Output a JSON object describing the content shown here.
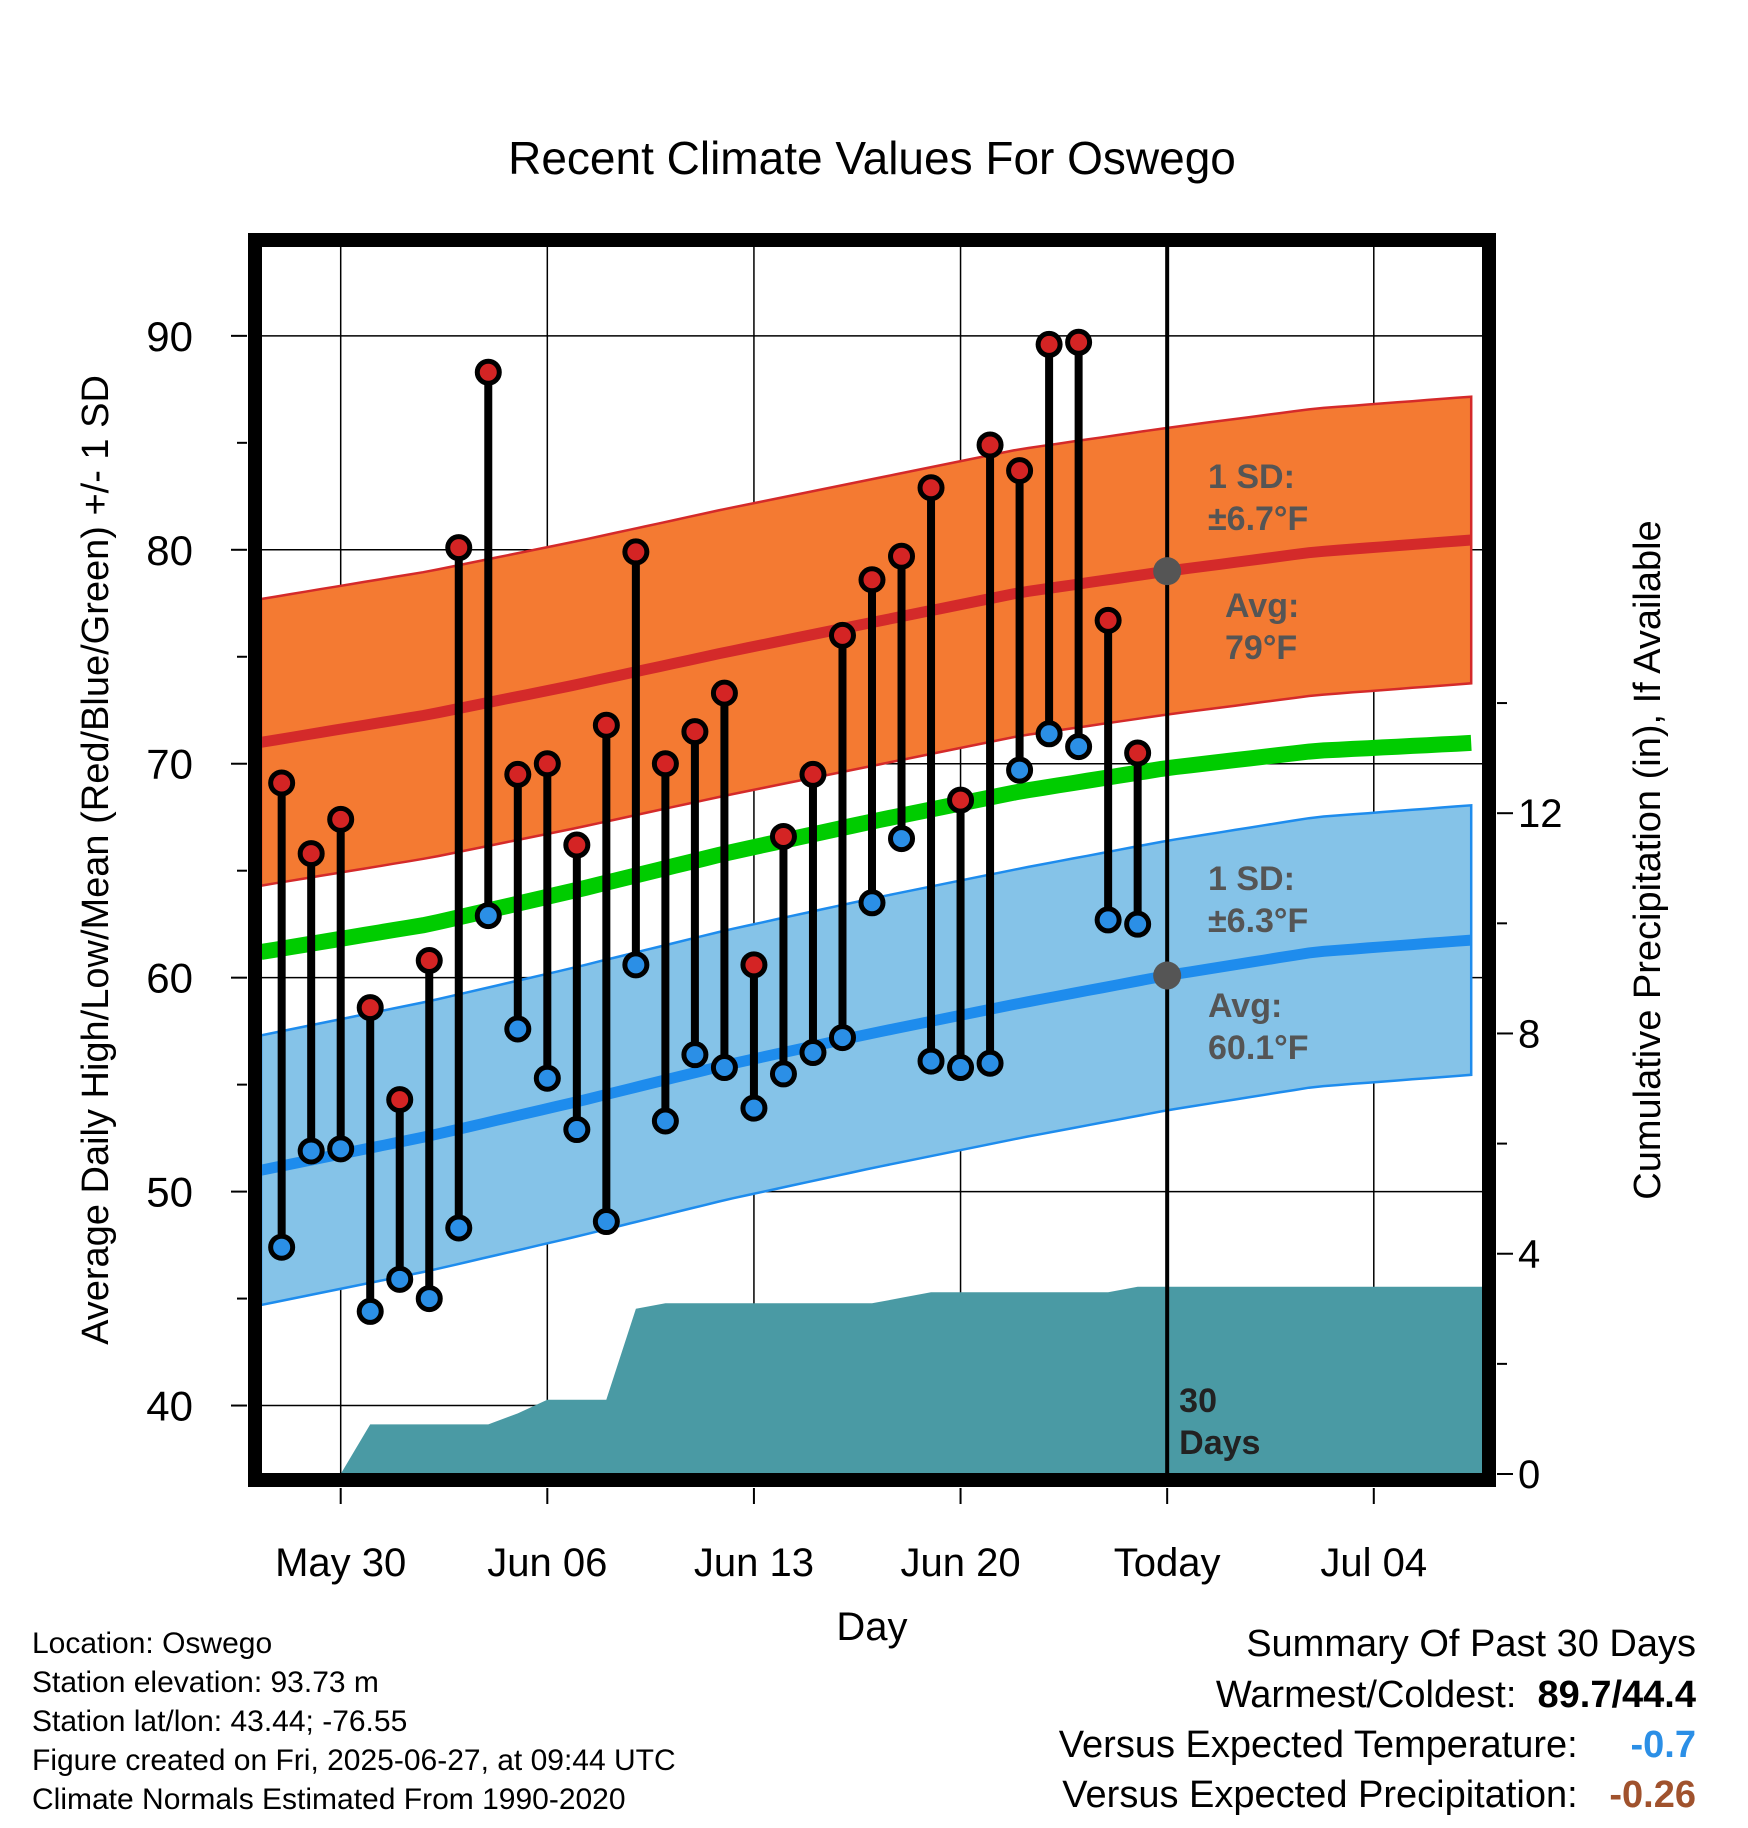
{
  "chart_data": {
    "type": "line",
    "title": "Recent Climate Values For Oswego",
    "xlabel": "Day",
    "ylabel": "Average Daily High/Low/Mean (Red/Blue/Green) +/- 1 SD",
    "y2label": "Cumulative Precipitation (in), If Available",
    "ylim": [
      36.8,
      94.2
    ],
    "y2lim": [
      0,
      22.3
    ],
    "y_ticks": [
      40,
      50,
      60,
      70,
      80,
      90
    ],
    "y2_ticks": [
      0,
      4,
      8,
      12
    ],
    "x_range_day_index": [
      -0.7,
      40.7
    ],
    "x_ticks": [
      {
        "day": 2,
        "label": "May 30"
      },
      {
        "day": 9,
        "label": "Jun 06"
      },
      {
        "day": 16,
        "label": "Jun 13"
      },
      {
        "day": 23,
        "label": "Jun 20"
      },
      {
        "day": 30,
        "label": "Today"
      },
      {
        "day": 37,
        "label": "Jul 04"
      }
    ],
    "grid": true,
    "today_line": {
      "day": 30,
      "label_line1": "30",
      "label_line2": "Days"
    },
    "normals": {
      "days": [
        -0.7,
        5,
        10,
        15,
        20,
        25,
        30,
        35,
        40.7
      ],
      "avg_high": [
        71.0,
        72.3,
        73.7,
        75.2,
        76.6,
        78.0,
        79.0,
        79.9,
        80.5
      ],
      "avg_low": [
        51.0,
        52.6,
        54.2,
        55.9,
        57.4,
        58.8,
        60.1,
        61.2,
        61.8
      ],
      "avg_mean": [
        61.2,
        62.5,
        64.1,
        65.8,
        67.3,
        68.7,
        69.8,
        70.6,
        71.0
      ],
      "high_sd": 6.7,
      "low_sd": 6.3
    },
    "annotations": {
      "high_sd_label_1": "1 SD:",
      "high_sd_label_2": "±6.7°F",
      "high_avg_label_1": "Avg:",
      "high_avg_label_2": "79°F",
      "low_sd_label_1": "1 SD:",
      "low_sd_label_2": "±6.3°F",
      "low_avg_label_1": "Avg:",
      "low_avg_label_2": "60.1°F"
    },
    "daily": {
      "days": [
        0,
        1,
        2,
        3,
        4,
        5,
        6,
        7,
        8,
        9,
        10,
        11,
        12,
        13,
        14,
        15,
        16,
        17,
        18,
        19,
        20,
        21,
        22,
        23,
        24,
        25,
        26,
        27,
        28,
        29
      ],
      "high": [
        69.1,
        65.8,
        67.4,
        58.6,
        54.3,
        60.8,
        80.1,
        88.3,
        69.5,
        70.0,
        66.2,
        71.8,
        79.9,
        70.0,
        71.5,
        73.3,
        60.6,
        66.6,
        69.5,
        76.0,
        78.6,
        79.7,
        82.9,
        68.3,
        84.9,
        83.7,
        89.6,
        89.7,
        76.7,
        70.5
      ],
      "low": [
        47.4,
        51.9,
        52.0,
        44.4,
        45.9,
        45.0,
        48.3,
        62.9,
        57.6,
        55.3,
        52.9,
        48.6,
        60.6,
        53.3,
        56.4,
        55.8,
        53.9,
        55.5,
        56.5,
        57.2,
        63.5,
        66.5,
        56.1,
        55.8,
        56.0,
        69.7,
        71.4,
        70.8,
        62.7,
        62.5
      ]
    },
    "precipitation": {
      "days": [
        -0.7,
        2,
        3,
        5,
        6,
        7,
        8,
        9,
        10,
        11,
        12,
        13,
        15,
        18,
        20,
        21,
        22,
        25,
        27,
        28,
        29,
        30,
        40.7
      ],
      "cumulative": [
        0,
        0,
        0.9,
        0.9,
        0.9,
        0.9,
        1.1,
        1.35,
        1.35,
        1.35,
        3.0,
        3.1,
        3.1,
        3.1,
        3.1,
        3.2,
        3.3,
        3.3,
        3.3,
        3.3,
        3.4,
        3.4,
        3.4
      ]
    },
    "colors": {
      "high_band": "#f47a32",
      "high_line": "#d42a2a",
      "low_band": "#85c3e8",
      "low_line": "#1e8ced",
      "mean_line": "#00cc00",
      "precip": "#4a9aa4",
      "high_point": "#d42424",
      "low_point": "#2b8fe6",
      "avg_marker": "#555555",
      "annotation_text": "#555555"
    }
  },
  "station": {
    "location": "Location: Oswego",
    "elevation": "Station elevation: 93.73 m",
    "latlon": "Station lat/lon: 43.44; -76.55",
    "created": "Figure created on Fri, 2025-06-27, at 09:44 UTC",
    "normals": "Climate Normals Estimated From 1990-2020"
  },
  "summary": {
    "heading": "Summary Of Past 30 Days",
    "warm_cold_label": "Warmest/Coldest:",
    "warm_cold_value": "89.7/44.4",
    "temp_label": "Versus Expected Temperature:",
    "temp_value": "-0.7",
    "temp_color": "#2b8fe6",
    "precip_label": "Versus Expected Precipitation:",
    "precip_value": "-0.26",
    "precip_color": "#a0522d"
  }
}
